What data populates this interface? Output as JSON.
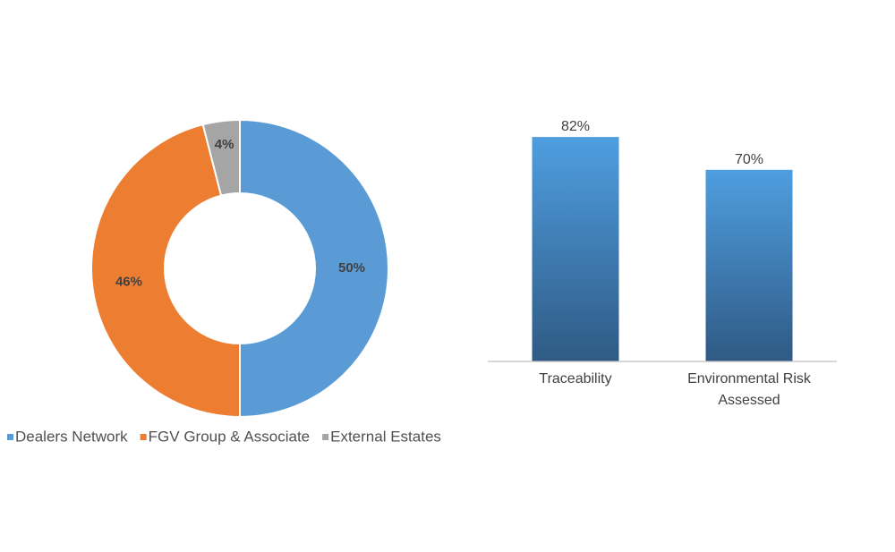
{
  "chart_data": [
    {
      "type": "pie",
      "donut": true,
      "categories": [
        "Dealers Network",
        "FGV Group & Associate",
        "External Estates"
      ],
      "values": [
        50,
        46,
        4
      ],
      "data_labels": [
        "50%",
        "46%",
        "4%"
      ],
      "colors": [
        "#5b9bd5",
        "#ed7d31",
        "#a5a5a5"
      ],
      "legend": {
        "position": "bottom",
        "entries": [
          "Dealers Network",
          "FGV Group & Associate",
          "External Estates"
        ]
      }
    },
    {
      "type": "bar",
      "categories": [
        "Traceability",
        "Environmental Risk Assessed"
      ],
      "category_lines": [
        [
          "Traceability"
        ],
        [
          "Environmental Risk",
          "Assessed"
        ]
      ],
      "values": [
        82,
        70
      ],
      "data_labels": [
        "82%",
        "70%"
      ],
      "ylim": [
        0,
        100
      ],
      "axis_visible": false,
      "grid": false,
      "colors": {
        "top": "#4f9ee0",
        "bottom": "#2f5a84"
      }
    }
  ]
}
